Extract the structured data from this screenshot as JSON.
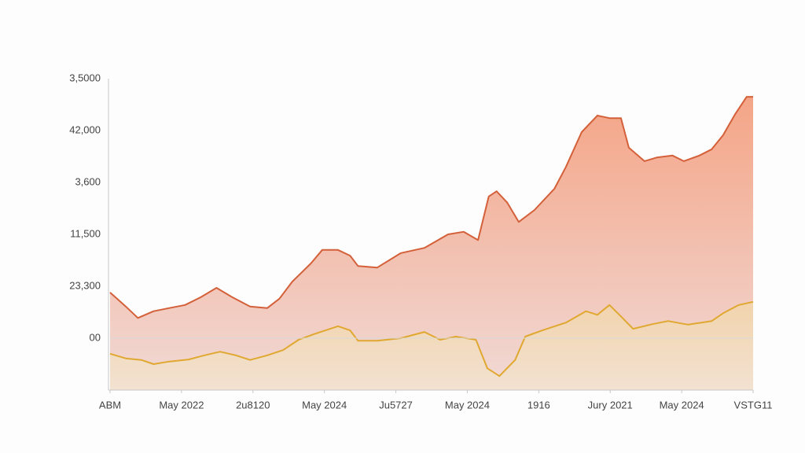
{
  "chart_data": {
    "type": "area",
    "ylim": [
      -1,
      5
    ],
    "yticks": [
      {
        "value": 0,
        "label": "00"
      },
      {
        "value": 1,
        "label": "23,300"
      },
      {
        "value": 2,
        "label": "11,500"
      },
      {
        "value": 3,
        "label": "3,600"
      },
      {
        "value": 4,
        "label": "42,000"
      },
      {
        "value": 5,
        "label": "3,5000"
      }
    ],
    "xlim": [
      0,
      9
    ],
    "xticks": [
      {
        "value": 0,
        "label": "ABM"
      },
      {
        "value": 1,
        "label": "May 2022"
      },
      {
        "value": 2,
        "label": "2u8120"
      },
      {
        "value": 3,
        "label": "May 2024"
      },
      {
        "value": 4,
        "label": "Ju5727"
      },
      {
        "value": 5,
        "label": "May 2024"
      },
      {
        "value": 6,
        "label": "1916"
      },
      {
        "value": 7,
        "label": "Jury 2021"
      },
      {
        "value": 8,
        "label": "May 2024"
      },
      {
        "value": 9,
        "label": "VSTG11"
      }
    ],
    "grid": true,
    "series": [
      {
        "color": "#d4603a",
        "fill_top": "#f4a080",
        "fill_bottom": "#f0d8d4",
        "x": [
          0,
          0.22,
          0.39,
          0.61,
          0.83,
          1.05,
          1.27,
          1.49,
          1.71,
          1.96,
          2.2,
          2.37,
          2.55,
          2.81,
          2.97,
          3.19,
          3.36,
          3.47,
          3.74,
          4.07,
          4.4,
          4.73,
          4.95,
          5.15,
          5.3,
          5.41,
          5.56,
          5.72,
          5.94,
          6.22,
          6.38,
          6.6,
          6.82,
          6.99,
          7.15,
          7.26,
          7.48,
          7.65,
          7.87,
          8.03,
          8.25,
          8.42,
          8.58,
          8.75,
          8.91,
          9
        ],
        "values": [
          0.88,
          0.61,
          0.39,
          0.52,
          0.58,
          0.64,
          0.79,
          0.97,
          0.79,
          0.61,
          0.58,
          0.76,
          1.09,
          1.44,
          1.7,
          1.7,
          1.59,
          1.39,
          1.36,
          1.64,
          1.74,
          2.0,
          2.05,
          1.89,
          2.73,
          2.83,
          2.61,
          2.24,
          2.47,
          2.88,
          3.3,
          3.97,
          4.29,
          4.24,
          4.24,
          3.67,
          3.41,
          3.48,
          3.52,
          3.41,
          3.52,
          3.64,
          3.91,
          4.32,
          4.65,
          4.65
        ]
      },
      {
        "color": "#e0a830",
        "fill_top": "#f2d6a8",
        "fill_bottom": "#f3e4d0",
        "x": [
          0,
          0.22,
          0.44,
          0.61,
          0.83,
          1.1,
          1.32,
          1.54,
          1.76,
          1.96,
          2.2,
          2.42,
          2.64,
          2.86,
          3.19,
          3.36,
          3.47,
          3.74,
          4.07,
          4.4,
          4.62,
          4.84,
          5.12,
          5.28,
          5.45,
          5.67,
          5.81,
          6.05,
          6.38,
          6.66,
          6.82,
          6.99,
          7.15,
          7.32,
          7.59,
          7.81,
          8.09,
          8.42,
          8.58,
          8.8,
          9
        ],
        "values": [
          -0.3,
          -0.39,
          -0.42,
          -0.5,
          -0.45,
          -0.41,
          -0.33,
          -0.26,
          -0.33,
          -0.42,
          -0.33,
          -0.23,
          -0.03,
          0.08,
          0.23,
          0.15,
          -0.05,
          -0.05,
          0,
          0.12,
          -0.03,
          0.03,
          -0.03,
          -0.58,
          -0.73,
          -0.42,
          0.03,
          0.15,
          0.3,
          0.52,
          0.45,
          0.64,
          0.42,
          0.18,
          0.27,
          0.33,
          0.26,
          0.33,
          0.48,
          0.64,
          0.7
        ]
      }
    ]
  }
}
